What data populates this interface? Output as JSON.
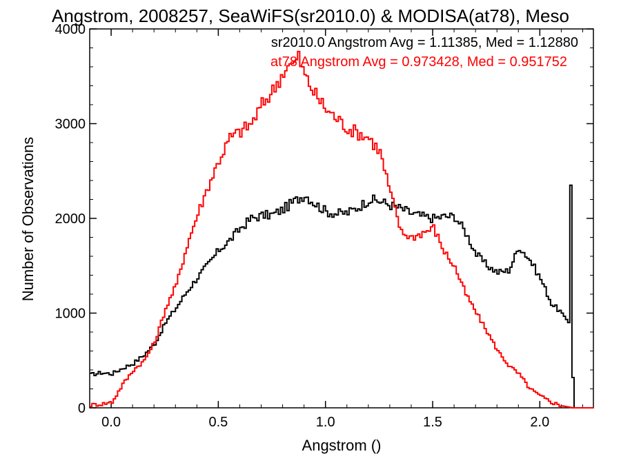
{
  "chart_data": {
    "type": "line",
    "title": "Angstrom, 2008257, SeaWiFS(sr2010.0) & MODISA(at78), Meso",
    "xlabel": "Angstrom ()",
    "ylabel": "Number of Observations",
    "xlim": [
      -0.1,
      2.25
    ],
    "ylim": [
      0,
      4000
    ],
    "x_ticks": [
      0.0,
      0.5,
      1.0,
      1.5,
      2.0
    ],
    "x_tick_labels": [
      "0.0",
      "0.5",
      "1.0",
      "1.5",
      "2.0"
    ],
    "y_ticks": [
      0,
      1000,
      2000,
      3000,
      4000
    ],
    "y_tick_labels": [
      "0",
      "1000",
      "2000",
      "3000",
      "4000"
    ],
    "grid": false,
    "legend_placement": "top-right",
    "annotations": [
      {
        "text": "sr2010.0 Angstrom Avg = 1.11385, Med = 1.12880",
        "color": "#000000"
      },
      {
        "text": "at78 Angstrom Avg = 0.973428, Med = 0.951752",
        "color": "#ff0000"
      }
    ],
    "series": [
      {
        "color": "#000000",
        "x": [
          -0.1,
          -0.05,
          0.0,
          0.05,
          0.1,
          0.15,
          0.2,
          0.25,
          0.3,
          0.35,
          0.4,
          0.45,
          0.5,
          0.55,
          0.6,
          0.65,
          0.7,
          0.75,
          0.8,
          0.85,
          0.9,
          0.95,
          1.0,
          1.05,
          1.1,
          1.15,
          1.2,
          1.25,
          1.3,
          1.35,
          1.4,
          1.45,
          1.5,
          1.55,
          1.6,
          1.65,
          1.7,
          1.75,
          1.8,
          1.85,
          1.9,
          1.95,
          2.0,
          2.05,
          2.1,
          2.13,
          2.14,
          2.15,
          2.16,
          2.2,
          2.25
        ],
        "values": [
          350,
          370,
          360,
          420,
          470,
          560,
          680,
          900,
          1060,
          1230,
          1380,
          1520,
          1670,
          1770,
          1900,
          2000,
          2030,
          2040,
          2100,
          2180,
          2250,
          2150,
          2070,
          2050,
          2060,
          2120,
          2200,
          2180,
          2140,
          2100,
          2050,
          2020,
          2000,
          2020,
          2020,
          1850,
          1620,
          1500,
          1430,
          1450,
          1700,
          1560,
          1360,
          1100,
          1000,
          900,
          2350,
          320,
          0,
          0,
          0
        ]
      },
      {
        "color": "#ff0000",
        "x": [
          -0.1,
          -0.05,
          0.0,
          0.05,
          0.1,
          0.15,
          0.2,
          0.25,
          0.3,
          0.35,
          0.4,
          0.45,
          0.5,
          0.55,
          0.6,
          0.65,
          0.7,
          0.75,
          0.8,
          0.85,
          0.87,
          0.9,
          0.95,
          1.0,
          1.05,
          1.1,
          1.15,
          1.2,
          1.25,
          1.3,
          1.35,
          1.4,
          1.45,
          1.5,
          1.55,
          1.6,
          1.65,
          1.7,
          1.75,
          1.8,
          1.85,
          1.9,
          1.95,
          2.0,
          2.05,
          2.1,
          2.15,
          2.2,
          2.25
        ],
        "values": [
          30,
          40,
          60,
          250,
          400,
          500,
          700,
          1050,
          1300,
          1720,
          2050,
          2350,
          2620,
          2850,
          2920,
          3000,
          3200,
          3350,
          3550,
          3650,
          3700,
          3500,
          3300,
          3150,
          3050,
          2950,
          2900,
          2850,
          2700,
          2250,
          1850,
          1800,
          1850,
          1900,
          1650,
          1480,
          1200,
          1000,
          800,
          600,
          450,
          350,
          200,
          120,
          60,
          20,
          0,
          0,
          0
        ]
      }
    ]
  }
}
